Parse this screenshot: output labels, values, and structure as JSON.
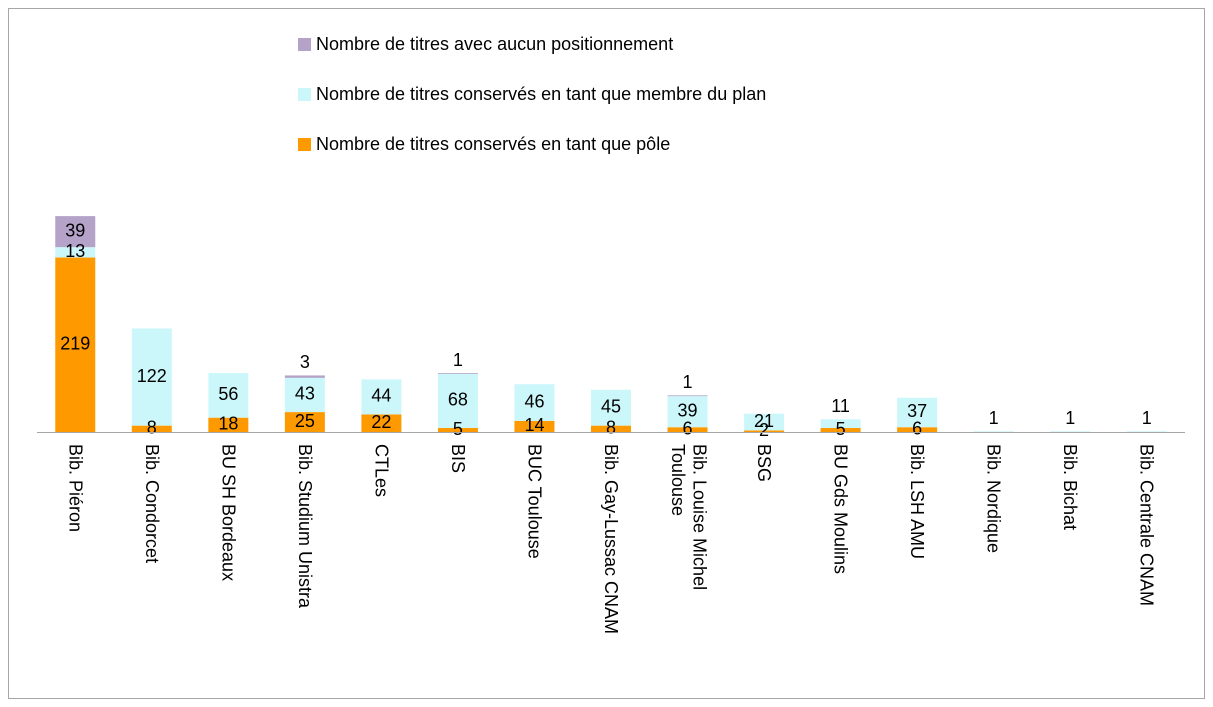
{
  "chart_data": {
    "type": "stacked-bar",
    "categories": [
      "Bib. Piéron",
      "Bib. Condorcet",
      "BU SH Bordeaux",
      "Bib. Studium Unistra",
      "CTLes",
      "BIS",
      "BUC Toulouse",
      "Bib. Gay-Lussac CNAM",
      "Bib. Louise Michel Toulouse",
      "BSG",
      "BU Gds Moulins",
      "Bib. LSH AMU",
      "Bib. Nordique",
      "Bib. Bichat",
      "Bib. Centrale CNAM"
    ],
    "series": [
      {
        "name": "Nombre de titres conservés en tant que pôle",
        "color": "#ff9900",
        "values": [
          219,
          8,
          18,
          25,
          22,
          5,
          14,
          8,
          6,
          2,
          5,
          6,
          null,
          null,
          null
        ]
      },
      {
        "name": "Nombre de titres conservés en tant que membre du plan",
        "color": "#ccf7fa",
        "values": [
          13,
          122,
          56,
          43,
          44,
          68,
          46,
          45,
          39,
          21,
          11,
          37,
          1,
          1,
          1
        ]
      },
      {
        "name": "Nombre de titres avec aucun positionnement",
        "color": "#b4a2c8",
        "values": [
          39,
          null,
          null,
          3,
          null,
          1,
          null,
          null,
          1,
          null,
          null,
          null,
          null,
          null,
          null
        ]
      }
    ],
    "ylim": [
      0,
      300
    ]
  }
}
